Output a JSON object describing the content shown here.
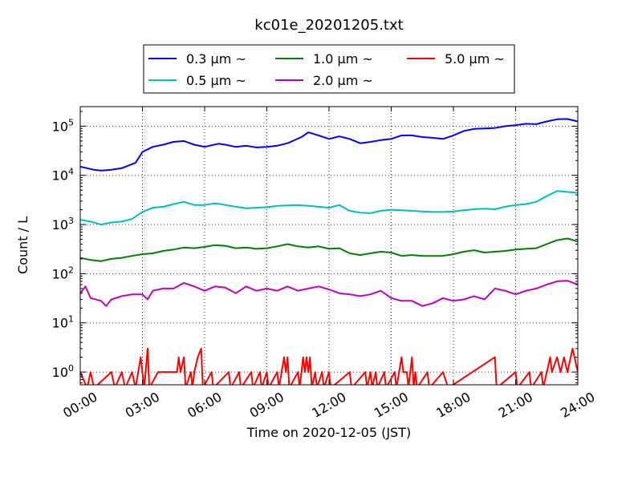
{
  "chart_data": {
    "type": "line",
    "title": "kc01e_20201205.txt",
    "xlabel": "Time on 2020-12-05 (JST)",
    "ylabel": "Count / L",
    "yscale": "log",
    "xlim": [
      "00:00",
      "24:00"
    ],
    "ylim": [
      0.55,
      250000
    ],
    "grid": true,
    "legend": "top-center",
    "xticks": [
      "00:00",
      "03:00",
      "06:00",
      "09:00",
      "12:00",
      "15:00",
      "18:00",
      "21:00",
      "24:00"
    ],
    "yticks": [
      {
        "value": 1,
        "label": "10^0"
      },
      {
        "value": 10,
        "label": "10^1"
      },
      {
        "value": 100,
        "label": "10^2"
      },
      {
        "value": 1000,
        "label": "10^3"
      },
      {
        "value": 10000,
        "label": "10^4"
      },
      {
        "value": 100000,
        "label": "10^5"
      }
    ],
    "series": [
      {
        "name": "0.3 μm ~",
        "color": "#0000ff",
        "points": [
          [
            "00:00",
            15000
          ],
          [
            "00:40",
            13000
          ],
          [
            "01:00",
            12500
          ],
          [
            "01:30",
            13000
          ],
          [
            "02:00",
            14000
          ],
          [
            "02:40",
            18000
          ],
          [
            "03:00",
            30000
          ],
          [
            "03:30",
            38000
          ],
          [
            "04:00",
            42000
          ],
          [
            "04:30",
            48000
          ],
          [
            "05:00",
            50000
          ],
          [
            "05:30",
            42000
          ],
          [
            "06:00",
            38000
          ],
          [
            "06:40",
            44000
          ],
          [
            "07:00",
            42000
          ],
          [
            "07:30",
            38000
          ],
          [
            "08:00",
            40000
          ],
          [
            "08:30",
            37000
          ],
          [
            "09:00",
            38000
          ],
          [
            "09:30",
            40000
          ],
          [
            "10:00",
            45000
          ],
          [
            "10:40",
            60000
          ],
          [
            "11:00",
            75000
          ],
          [
            "11:30",
            65000
          ],
          [
            "12:00",
            55000
          ],
          [
            "12:30",
            62000
          ],
          [
            "13:00",
            55000
          ],
          [
            "13:30",
            45000
          ],
          [
            "14:00",
            48000
          ],
          [
            "14:30",
            52000
          ],
          [
            "15:00",
            55000
          ],
          [
            "15:30",
            65000
          ],
          [
            "16:00",
            65000
          ],
          [
            "16:30",
            60000
          ],
          [
            "17:00",
            58000
          ],
          [
            "17:30",
            55000
          ],
          [
            "18:00",
            65000
          ],
          [
            "18:30",
            80000
          ],
          [
            "19:00",
            88000
          ],
          [
            "19:30",
            90000
          ],
          [
            "20:00",
            92000
          ],
          [
            "20:30",
            100000
          ],
          [
            "21:00",
            105000
          ],
          [
            "21:30",
            112000
          ],
          [
            "22:00",
            110000
          ],
          [
            "22:30",
            125000
          ],
          [
            "23:00",
            138000
          ],
          [
            "23:30",
            140000
          ],
          [
            "24:00",
            125000
          ]
        ]
      },
      {
        "name": "0.5 μm ~",
        "color": "#00bfbf",
        "points": [
          [
            "00:00",
            1250
          ],
          [
            "00:30",
            1150
          ],
          [
            "01:00",
            1000
          ],
          [
            "01:30",
            1100
          ],
          [
            "02:00",
            1150
          ],
          [
            "02:30",
            1300
          ],
          [
            "03:00",
            1800
          ],
          [
            "03:30",
            2200
          ],
          [
            "04:00",
            2300
          ],
          [
            "04:30",
            2600
          ],
          [
            "05:00",
            2900
          ],
          [
            "05:30",
            2500
          ],
          [
            "06:00",
            2500
          ],
          [
            "06:30",
            2700
          ],
          [
            "07:00",
            2500
          ],
          [
            "07:30",
            2300
          ],
          [
            "08:00",
            2150
          ],
          [
            "08:30",
            2200
          ],
          [
            "09:00",
            2250
          ],
          [
            "09:30",
            2400
          ],
          [
            "10:00",
            2450
          ],
          [
            "10:30",
            2500
          ],
          [
            "11:00",
            2400
          ],
          [
            "11:30",
            2300
          ],
          [
            "12:00",
            2200
          ],
          [
            "12:30",
            2500
          ],
          [
            "13:00",
            1900
          ],
          [
            "13:30",
            1750
          ],
          [
            "14:00",
            1700
          ],
          [
            "14:30",
            1900
          ],
          [
            "15:00",
            2000
          ],
          [
            "15:30",
            1950
          ],
          [
            "16:00",
            1900
          ],
          [
            "16:30",
            1850
          ],
          [
            "17:00",
            1800
          ],
          [
            "17:30",
            1800
          ],
          [
            "18:00",
            1850
          ],
          [
            "18:30",
            1950
          ],
          [
            "19:00",
            2050
          ],
          [
            "19:30",
            2100
          ],
          [
            "20:00",
            2050
          ],
          [
            "20:30",
            2300
          ],
          [
            "21:00",
            2500
          ],
          [
            "21:30",
            2600
          ],
          [
            "22:00",
            2900
          ],
          [
            "22:30",
            3800
          ],
          [
            "23:00",
            4800
          ],
          [
            "23:30",
            4600
          ],
          [
            "24:00",
            4400
          ]
        ]
      },
      {
        "name": "1.0 μm ~",
        "color": "#008000",
        "points": [
          [
            "00:00",
            210
          ],
          [
            "00:30",
            190
          ],
          [
            "01:00",
            180
          ],
          [
            "01:30",
            200
          ],
          [
            "02:00",
            210
          ],
          [
            "02:30",
            230
          ],
          [
            "03:00",
            250
          ],
          [
            "03:30",
            260
          ],
          [
            "04:00",
            290
          ],
          [
            "04:30",
            310
          ],
          [
            "05:00",
            340
          ],
          [
            "05:30",
            330
          ],
          [
            "06:00",
            350
          ],
          [
            "06:30",
            380
          ],
          [
            "07:00",
            370
          ],
          [
            "07:30",
            330
          ],
          [
            "08:00",
            340
          ],
          [
            "08:30",
            320
          ],
          [
            "09:00",
            330
          ],
          [
            "09:30",
            360
          ],
          [
            "10:00",
            400
          ],
          [
            "10:30",
            360
          ],
          [
            "11:00",
            340
          ],
          [
            "11:30",
            360
          ],
          [
            "12:00",
            320
          ],
          [
            "12:30",
            330
          ],
          [
            "13:00",
            260
          ],
          [
            "13:30",
            240
          ],
          [
            "14:00",
            260
          ],
          [
            "14:30",
            280
          ],
          [
            "15:00",
            270
          ],
          [
            "15:30",
            230
          ],
          [
            "16:00",
            240
          ],
          [
            "16:30",
            230
          ],
          [
            "17:00",
            230
          ],
          [
            "17:30",
            230
          ],
          [
            "18:00",
            250
          ],
          [
            "18:30",
            280
          ],
          [
            "19:00",
            300
          ],
          [
            "19:30",
            270
          ],
          [
            "20:00",
            280
          ],
          [
            "20:30",
            290
          ],
          [
            "21:00",
            310
          ],
          [
            "21:30",
            320
          ],
          [
            "22:00",
            330
          ],
          [
            "22:30",
            400
          ],
          [
            "23:00",
            480
          ],
          [
            "23:30",
            520
          ],
          [
            "24:00",
            450
          ]
        ]
      },
      {
        "name": "2.0 μm ~",
        "color": "#bf00bf",
        "points": [
          [
            "00:00",
            40
          ],
          [
            "00:15",
            55
          ],
          [
            "00:30",
            32
          ],
          [
            "01:00",
            28
          ],
          [
            "01:15",
            22
          ],
          [
            "01:30",
            30
          ],
          [
            "02:00",
            35
          ],
          [
            "02:30",
            38
          ],
          [
            "03:00",
            38
          ],
          [
            "03:15",
            30
          ],
          [
            "03:30",
            45
          ],
          [
            "04:00",
            50
          ],
          [
            "04:30",
            50
          ],
          [
            "05:00",
            65
          ],
          [
            "05:30",
            55
          ],
          [
            "06:00",
            45
          ],
          [
            "06:30",
            55
          ],
          [
            "07:00",
            52
          ],
          [
            "07:30",
            40
          ],
          [
            "08:00",
            55
          ],
          [
            "08:30",
            45
          ],
          [
            "09:00",
            50
          ],
          [
            "09:30",
            45
          ],
          [
            "10:00",
            55
          ],
          [
            "10:30",
            45
          ],
          [
            "11:00",
            50
          ],
          [
            "11:30",
            55
          ],
          [
            "12:00",
            48
          ],
          [
            "12:30",
            40
          ],
          [
            "13:00",
            38
          ],
          [
            "13:30",
            35
          ],
          [
            "14:00",
            38
          ],
          [
            "14:30",
            45
          ],
          [
            "15:00",
            32
          ],
          [
            "15:30",
            28
          ],
          [
            "16:00",
            28
          ],
          [
            "16:30",
            22
          ],
          [
            "17:00",
            25
          ],
          [
            "17:30",
            32
          ],
          [
            "18:00",
            28
          ],
          [
            "18:30",
            30
          ],
          [
            "19:00",
            35
          ],
          [
            "19:30",
            30
          ],
          [
            "20:00",
            50
          ],
          [
            "20:30",
            45
          ],
          [
            "21:00",
            38
          ],
          [
            "21:30",
            45
          ],
          [
            "22:00",
            50
          ],
          [
            "22:30",
            60
          ],
          [
            "23:00",
            70
          ],
          [
            "23:30",
            72
          ],
          [
            "24:00",
            60
          ]
        ]
      },
      {
        "name": "5.0 μm ~",
        "color": "#ff0000",
        "points": [
          [
            "00:00",
            1
          ],
          [
            "00:20",
            0
          ],
          [
            "00:30",
            1
          ],
          [
            "00:40",
            0
          ],
          [
            "01:30",
            1
          ],
          [
            "01:40",
            0
          ],
          [
            "02:00",
            1
          ],
          [
            "02:10",
            0
          ],
          [
            "02:30",
            1
          ],
          [
            "02:40",
            0
          ],
          [
            "02:55",
            2
          ],
          [
            "03:05",
            0
          ],
          [
            "03:15",
            3
          ],
          [
            "03:20",
            0
          ],
          [
            "03:45",
            1
          ],
          [
            "04:40",
            1
          ],
          [
            "04:45",
            2
          ],
          [
            "04:50",
            1
          ],
          [
            "05:00",
            2
          ],
          [
            "05:05",
            0
          ],
          [
            "05:20",
            1
          ],
          [
            "05:25",
            0
          ],
          [
            "05:30",
            1
          ],
          [
            "05:40",
            2
          ],
          [
            "05:50",
            3
          ],
          [
            "05:55",
            0
          ],
          [
            "06:20",
            1
          ],
          [
            "06:25",
            0
          ],
          [
            "07:10",
            1
          ],
          [
            "07:15",
            0
          ],
          [
            "07:40",
            1
          ],
          [
            "07:45",
            0
          ],
          [
            "08:15",
            1
          ],
          [
            "08:20",
            0
          ],
          [
            "08:40",
            1
          ],
          [
            "08:45",
            0
          ],
          [
            "09:00",
            1
          ],
          [
            "09:05",
            0
          ],
          [
            "09:30",
            1
          ],
          [
            "09:35",
            0
          ],
          [
            "09:50",
            2
          ],
          [
            "09:55",
            1
          ],
          [
            "10:00",
            2
          ],
          [
            "10:05",
            0
          ],
          [
            "10:30",
            1
          ],
          [
            "10:35",
            0
          ],
          [
            "10:45",
            2
          ],
          [
            "10:50",
            1
          ],
          [
            "10:55",
            2
          ],
          [
            "11:00",
            1
          ],
          [
            "11:05",
            2
          ],
          [
            "11:10",
            0
          ],
          [
            "11:20",
            1
          ],
          [
            "11:25",
            0
          ],
          [
            "11:40",
            1
          ],
          [
            "11:45",
            0
          ],
          [
            "12:00",
            1
          ],
          [
            "12:05",
            0
          ],
          [
            "13:00",
            1
          ],
          [
            "13:05",
            0
          ],
          [
            "13:45",
            1
          ],
          [
            "13:50",
            0
          ],
          [
            "14:00",
            1
          ],
          [
            "14:05",
            0
          ],
          [
            "14:15",
            1
          ],
          [
            "14:20",
            0
          ],
          [
            "14:40",
            1
          ],
          [
            "14:45",
            0
          ],
          [
            "15:10",
            1
          ],
          [
            "15:15",
            0
          ],
          [
            "15:30",
            2
          ],
          [
            "15:35",
            1
          ],
          [
            "15:45",
            1
          ],
          [
            "15:50",
            0
          ],
          [
            "16:00",
            2
          ],
          [
            "16:05",
            0
          ],
          [
            "16:10",
            1
          ],
          [
            "16:15",
            0
          ],
          [
            "16:45",
            1
          ],
          [
            "16:50",
            0
          ],
          [
            "17:30",
            1
          ],
          [
            "17:45",
            0
          ],
          [
            "20:00",
            2
          ],
          [
            "20:05",
            0
          ],
          [
            "21:00",
            1
          ],
          [
            "21:05",
            0
          ],
          [
            "21:40",
            1
          ],
          [
            "21:45",
            0
          ],
          [
            "22:15",
            1
          ],
          [
            "22:20",
            0
          ],
          [
            "22:40",
            2
          ],
          [
            "22:45",
            1
          ],
          [
            "23:00",
            2
          ],
          [
            "23:10",
            1
          ],
          [
            "23:20",
            2
          ],
          [
            "23:30",
            1
          ],
          [
            "23:45",
            3
          ],
          [
            "24:00",
            1
          ]
        ]
      }
    ]
  }
}
